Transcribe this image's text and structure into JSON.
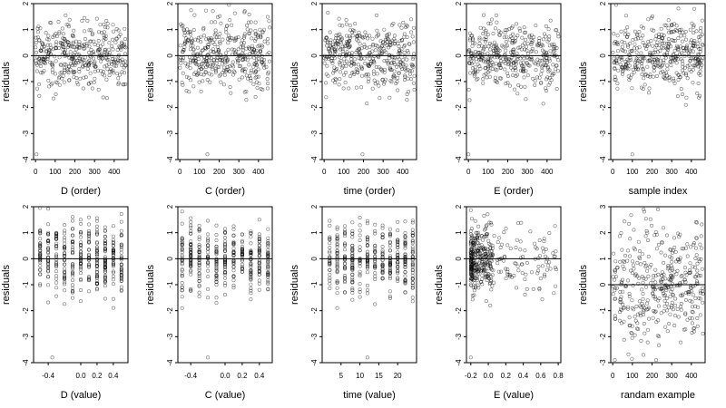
{
  "figure": {
    "background": "#ffffff",
    "point_color": "#000000",
    "point_alpha": 0.55,
    "grid": false
  },
  "chart_data": [
    {
      "type": "scatter",
      "xlabel": "D (order)",
      "ylabel": "residuals",
      "ylim": [
        -4,
        2
      ],
      "yticks": [
        -4,
        -3,
        -2,
        -1,
        0,
        1,
        2
      ],
      "xlim": [
        -10,
        470
      ],
      "xticks": [
        0,
        100,
        200,
        300,
        400
      ],
      "xticklabels": [
        "0",
        "100",
        "200",
        "300",
        "400"
      ],
      "hline": 0,
      "x_kind": "order",
      "outliers": [
        [
          5,
          -3.8
        ]
      ],
      "x": [],
      "y": []
    },
    {
      "type": "scatter",
      "xlabel": "C (order)",
      "ylabel": "residuals",
      "ylim": [
        -4,
        2
      ],
      "yticks": [
        -4,
        -3,
        -2,
        -1,
        0,
        1,
        2
      ],
      "xlim": [
        -10,
        470
      ],
      "xticks": [
        0,
        100,
        200,
        300,
        400
      ],
      "xticklabels": [
        "0",
        "100",
        "200",
        "300",
        "400"
      ],
      "hline": 0,
      "x_kind": "order",
      "outliers": [
        [
          140,
          -3.8
        ]
      ],
      "x": [],
      "y": []
    },
    {
      "type": "scatter",
      "xlabel": "time (order)",
      "ylabel": "residuals",
      "ylim": [
        -4,
        2
      ],
      "yticks": [
        -4,
        -3,
        -2,
        -1,
        0,
        1,
        2
      ],
      "xlim": [
        -10,
        470
      ],
      "xticks": [
        0,
        100,
        200,
        300,
        400
      ],
      "xticklabels": [
        "0",
        "100",
        "200",
        "300",
        "400"
      ],
      "hline": 0,
      "x_kind": "order",
      "outliers": [
        [
          195,
          -3.8
        ]
      ],
      "x": [],
      "y": []
    },
    {
      "type": "scatter",
      "xlabel": "E (order)",
      "ylabel": "residuals",
      "ylim": [
        -4,
        2
      ],
      "yticks": [
        -4,
        -3,
        -2,
        -1,
        0,
        1,
        2
      ],
      "xlim": [
        -10,
        470
      ],
      "xticks": [
        0,
        100,
        200,
        300,
        400
      ],
      "xticklabels": [
        "0",
        "100",
        "200",
        "300",
        "400"
      ],
      "hline": 0,
      "x_kind": "order",
      "outliers": [
        [
          0,
          -3.8
        ]
      ],
      "x": [],
      "y": []
    },
    {
      "type": "scatter",
      "xlabel": "sample index",
      "ylabel": "residuals",
      "ylim": [
        -4,
        2
      ],
      "yticks": [
        -4,
        -3,
        -2,
        -1,
        0,
        1,
        2
      ],
      "xlim": [
        -10,
        470
      ],
      "xticks": [
        0,
        100,
        200,
        300,
        400
      ],
      "xticklabels": [
        "0",
        "100",
        "200",
        "300",
        "400"
      ],
      "hline": 0,
      "x_kind": "order",
      "outliers": [
        [
          100,
          -3.8
        ]
      ],
      "x": [],
      "y": []
    },
    {
      "type": "scatter",
      "xlabel": "D (value)",
      "ylabel": "residuals",
      "ylim": [
        -4,
        2
      ],
      "yticks": [
        -4,
        -3,
        -2,
        -1,
        0,
        1,
        2
      ],
      "xlim": [
        -0.58,
        0.58
      ],
      "xticks": [
        -0.4,
        0.0,
        0.2,
        0.4
      ],
      "xticklabels": [
        "-0.4",
        "0.0",
        "0.2",
        "0.4"
      ],
      "hline": 0,
      "x_kind": "discrete",
      "levels": [
        -0.5,
        -0.4,
        -0.3,
        -0.2,
        -0.1,
        0.0,
        0.1,
        0.2,
        0.3,
        0.4,
        0.5
      ],
      "outliers": [
        [
          -0.35,
          -3.8
        ]
      ],
      "x": [],
      "y": []
    },
    {
      "type": "scatter",
      "xlabel": "C (value)",
      "ylabel": "residuals",
      "ylim": [
        -4,
        2
      ],
      "yticks": [
        -4,
        -3,
        -2,
        -1,
        0,
        1,
        2
      ],
      "xlim": [
        -0.55,
        0.55
      ],
      "xticks": [
        -0.4,
        0.0,
        0.2,
        0.4
      ],
      "xticklabels": [
        "-0.4",
        "0.0",
        "0.2",
        "0.4"
      ],
      "hline": 0,
      "x_kind": "discrete",
      "levels": [
        -0.5,
        -0.4,
        -0.3,
        -0.2,
        -0.1,
        0.0,
        0.1,
        0.2,
        0.3,
        0.4,
        0.5
      ],
      "outliers": [
        [
          -0.2,
          -3.8
        ]
      ],
      "x": [],
      "y": []
    },
    {
      "type": "scatter",
      "xlabel": "time (value)",
      "ylabel": "residuals",
      "ylim": [
        -4,
        2
      ],
      "yticks": [
        -4,
        -3,
        -2,
        -1,
        0,
        1,
        2
      ],
      "xlim": [
        0,
        25
      ],
      "xticks": [
        5,
        10,
        15,
        20
      ],
      "xticklabels": [
        "5",
        "10",
        "15",
        "20"
      ],
      "hline": 0,
      "x_kind": "discrete",
      "levels": [
        2,
        4,
        6,
        8,
        10,
        12,
        14,
        16,
        18,
        20,
        22,
        24
      ],
      "outliers": [
        [
          12,
          -3.8
        ]
      ],
      "x": [],
      "y": []
    },
    {
      "type": "scatter",
      "xlabel": "E (value)",
      "ylabel": "residuals",
      "ylim": [
        -4,
        2
      ],
      "yticks": [
        -4,
        -3,
        -2,
        -1,
        0,
        1,
        2
      ],
      "xlim": [
        -0.25,
        0.83
      ],
      "xticks": [
        -0.2,
        0.0,
        0.2,
        0.4,
        0.6,
        0.8
      ],
      "xticklabels": [
        "-0.2",
        "0.0",
        "0.2",
        "0.4",
        "0.6",
        "0.8"
      ],
      "hline": 0,
      "x_kind": "skewed",
      "outliers": [
        [
          -0.2,
          -3.8
        ]
      ],
      "x": [],
      "y": []
    },
    {
      "type": "scatter",
      "xlabel": "randam example",
      "ylabel": "residuals",
      "ylim": [
        -3,
        3
      ],
      "yticks": [
        -3,
        -2,
        -1,
        0,
        1,
        2,
        3
      ],
      "xlim": [
        -10,
        470
      ],
      "xticks": [
        0,
        100,
        200,
        300,
        400
      ],
      "xticklabels": [
        "0",
        "100",
        "200",
        "300",
        "400"
      ],
      "hline": 0,
      "x_kind": "order",
      "outliers": [],
      "x": [],
      "y": []
    }
  ]
}
